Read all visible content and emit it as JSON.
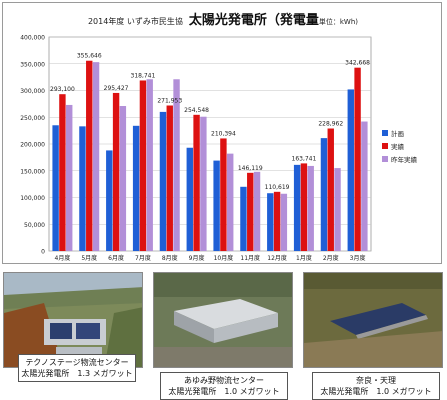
{
  "chart_data": {
    "type": "bar",
    "title_prefix": "2014年度 いずみ市民生協",
    "title": "太陽光発電所（発電量",
    "title_unit": "単位：kWh)",
    "categories": [
      "4月度",
      "5月度",
      "6月度",
      "7月度",
      "8月度",
      "9月度",
      "10月度",
      "11月度",
      "12月度",
      "1月度",
      "2月度",
      "3月度"
    ],
    "series": [
      {
        "name": "計画",
        "color": "#1f5fd6",
        "values": [
          235000,
          233000,
          188000,
          234000,
          260000,
          193000,
          169000,
          120000,
          108000,
          161000,
          211000,
          302000
        ]
      },
      {
        "name": "実績",
        "color": "#dd1111",
        "values": [
          293100,
          355646,
          295427,
          318741,
          271953,
          254548,
          210394,
          146119,
          110619,
          163741,
          228962,
          342668
        ]
      },
      {
        "name": "昨年実績",
        "color": "#b28fd8",
        "values": [
          273000,
          353000,
          271000,
          321000,
          321000,
          251000,
          182000,
          148000,
          107000,
          159000,
          155000,
          242000
        ]
      }
    ],
    "data_labels": [
      "293,100",
      "355,646",
      "295,427",
      "318,741",
      "271,953",
      "254,548",
      "210,394",
      "146,119",
      "110,619",
      "163,741",
      "228,962",
      "342,668"
    ],
    "ylim": [
      0,
      400000
    ],
    "yticks": [
      0,
      50000,
      100000,
      150000,
      200000,
      250000,
      300000,
      350000,
      400000
    ],
    "ytick_labels": [
      "0",
      "50,000",
      "100,000",
      "150,000",
      "200,000",
      "250,000",
      "300,000",
      "350,000",
      "400,000"
    ],
    "grid": true,
    "legend_position": "right"
  },
  "photos": [
    {
      "name": "テクノステージ物流センター",
      "plant": "太陽光発電所　1.3 メガワット"
    },
    {
      "name": "あゆみ野物流センター",
      "plant": "太陽光発電所　1.0 メガワット"
    },
    {
      "name": "奈良・天理",
      "plant": "太陽光発電所　1.0 メガワット"
    }
  ]
}
